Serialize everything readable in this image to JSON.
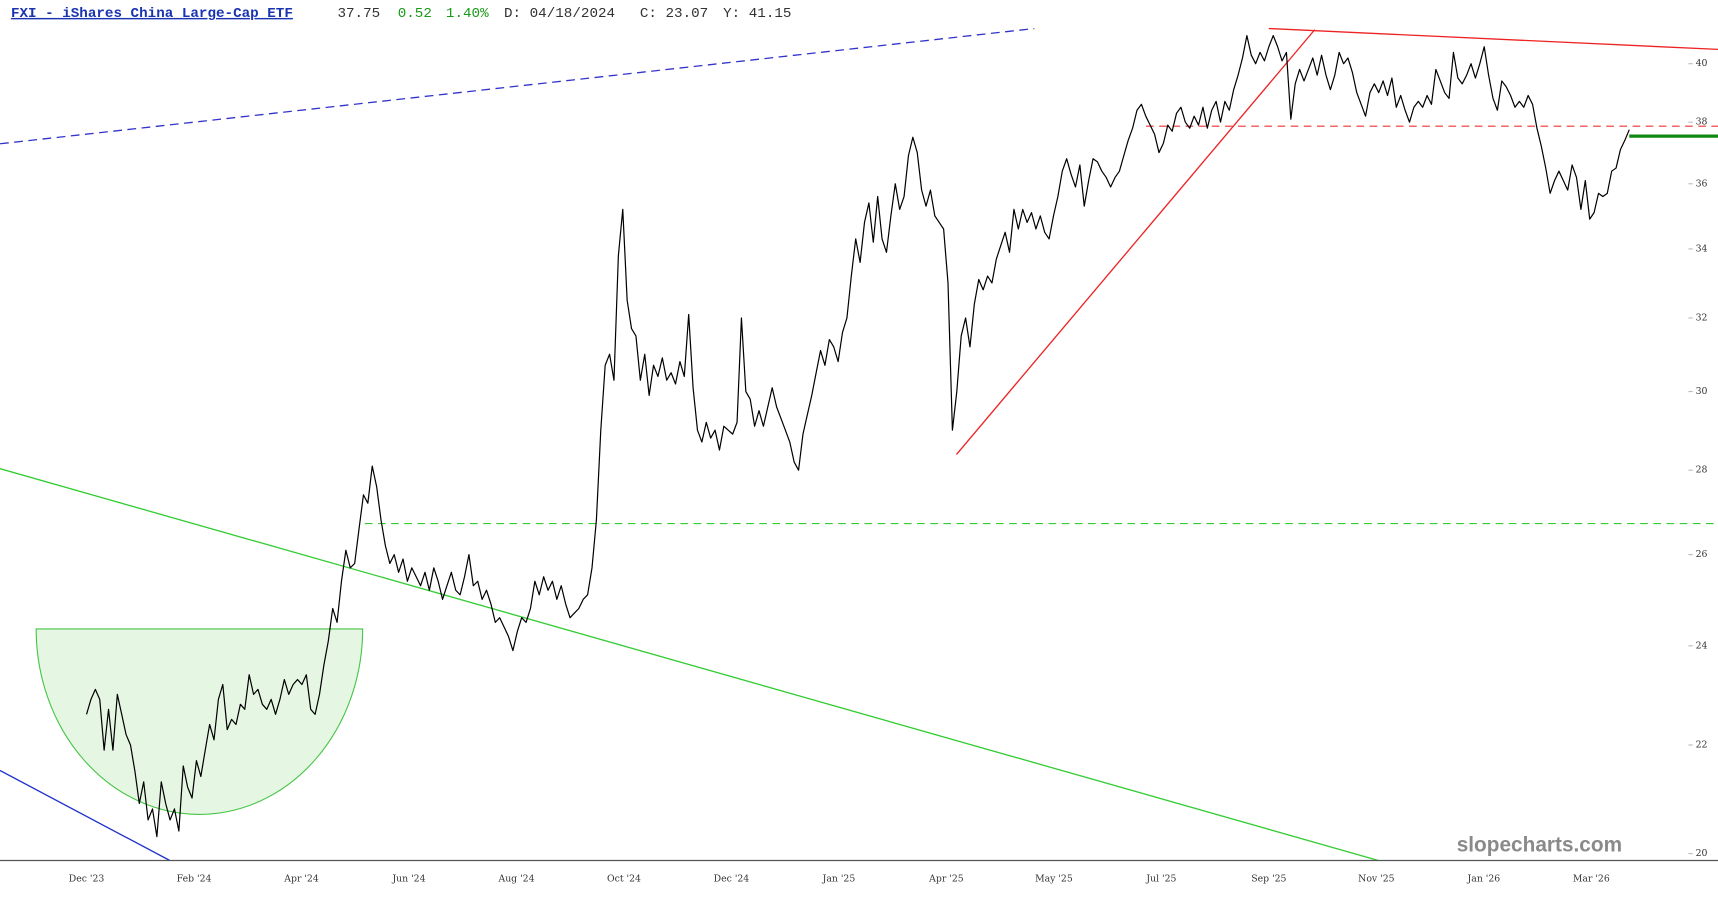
{
  "chart_data": {
    "type": "line",
    "title": "FXI - iShares China Large-Cap ETF",
    "header_stats": [
      {
        "text": "37.75",
        "color": "#333333"
      },
      {
        "text": "0.52",
        "color": "#1a9a1a"
      },
      {
        "text": "1.40%",
        "color": "#1a9a1a"
      },
      {
        "text": "D: 04/18/2024",
        "color": "#333333"
      },
      {
        "text": "C: 23.07",
        "color": "#333333"
      },
      {
        "text": "Y: 41.15",
        "color": "#333333"
      }
    ],
    "watermark": "slopecharts.com",
    "log_scale": true,
    "grid": false,
    "ylim": [
      19.88,
      42.3
    ],
    "yticks": [
      20,
      22,
      24,
      26,
      28,
      30,
      32,
      34,
      36,
      38,
      40
    ],
    "xtick_labels": [
      "Dec '23",
      "Feb '24",
      "Apr '24",
      "Jun '24",
      "Aug '24",
      "Oct '24",
      "Dec '24",
      "Jan '25",
      "Apr '25",
      "May '25",
      "Jul '25",
      "Sep '25",
      "Nov '25",
      "Jan '26",
      "Mar '26"
    ],
    "series": [
      {
        "color": "#000000",
        "values": [
          22.6,
          22.9,
          23.1,
          22.9,
          21.9,
          22.7,
          21.9,
          23.0,
          22.6,
          22.2,
          22.0,
          21.5,
          20.9,
          21.3,
          20.6,
          20.8,
          20.3,
          21.3,
          20.9,
          20.6,
          20.8,
          20.4,
          21.6,
          21.2,
          21.0,
          21.7,
          21.4,
          21.9,
          22.4,
          22.1,
          22.9,
          23.2,
          22.3,
          22.5,
          22.4,
          22.8,
          22.7,
          23.4,
          23.0,
          23.1,
          22.8,
          22.7,
          22.9,
          22.6,
          22.9,
          23.3,
          23.0,
          23.2,
          23.3,
          23.2,
          23.4,
          22.7,
          22.6,
          23.0,
          23.6,
          24.1,
          24.8,
          24.5,
          25.4,
          26.1,
          25.7,
          25.8,
          26.6,
          27.4,
          27.2,
          28.1,
          27.6,
          26.8,
          26.2,
          25.8,
          26.0,
          25.6,
          25.9,
          25.4,
          25.7,
          25.5,
          25.3,
          25.6,
          25.2,
          25.7,
          25.4,
          25.0,
          25.3,
          25.6,
          25.2,
          25.1,
          25.5,
          26.0,
          25.3,
          25.4,
          25.0,
          25.2,
          24.9,
          24.5,
          24.6,
          24.4,
          24.2,
          23.9,
          24.3,
          24.6,
          24.5,
          24.8,
          25.4,
          25.1,
          25.5,
          25.2,
          25.4,
          25.0,
          25.3,
          24.9,
          24.6,
          24.7,
          24.8,
          25.0,
          25.1,
          25.7,
          26.8,
          29.0,
          30.7,
          31.0,
          30.3,
          33.8,
          35.2,
          32.5,
          31.7,
          31.5,
          30.3,
          31.0,
          29.9,
          30.7,
          30.4,
          30.9,
          30.3,
          30.5,
          30.2,
          30.8,
          30.4,
          32.1,
          30.1,
          29.0,
          28.7,
          29.2,
          28.8,
          29.0,
          28.5,
          29.1,
          29.0,
          28.9,
          29.2,
          32.0,
          30.0,
          29.8,
          29.1,
          29.5,
          29.1,
          29.6,
          30.1,
          29.6,
          29.3,
          29.0,
          28.7,
          28.2,
          28.0,
          28.9,
          29.4,
          29.9,
          30.5,
          31.1,
          30.7,
          31.4,
          31.2,
          30.8,
          31.6,
          32.0,
          33.2,
          34.3,
          33.6,
          34.8,
          35.4,
          34.2,
          35.6,
          34.3,
          33.9,
          35.0,
          36.0,
          35.2,
          35.6,
          36.9,
          37.5,
          37.0,
          35.8,
          35.3,
          35.8,
          35.0,
          34.8,
          34.6,
          33.0,
          29.0,
          30.0,
          31.5,
          32.0,
          31.2,
          32.4,
          33.1,
          32.8,
          33.2,
          33.0,
          33.7,
          34.1,
          34.5,
          33.9,
          35.2,
          34.6,
          35.2,
          34.8,
          35.1,
          34.6,
          35.0,
          34.5,
          34.3,
          35.0,
          35.6,
          36.4,
          36.8,
          36.3,
          35.9,
          36.6,
          35.3,
          36.1,
          36.8,
          36.7,
          36.4,
          36.2,
          35.9,
          36.2,
          36.4,
          36.9,
          37.4,
          37.8,
          38.4,
          38.6,
          38.2,
          37.9,
          37.6,
          37.0,
          37.3,
          37.9,
          37.7,
          38.3,
          38.5,
          38.0,
          37.8,
          38.2,
          37.9,
          38.5,
          37.8,
          38.4,
          38.7,
          38.0,
          38.7,
          38.4,
          39.1,
          39.6,
          40.2,
          41.0,
          40.3,
          40.0,
          40.4,
          40.1,
          40.6,
          41.0,
          40.6,
          40.1,
          40.4,
          38.1,
          39.3,
          39.8,
          39.4,
          39.8,
          40.2,
          39.6,
          40.3,
          39.6,
          39.1,
          39.6,
          40.4,
          40.0,
          40.2,
          39.7,
          39.0,
          38.6,
          38.2,
          39.0,
          39.3,
          39.0,
          39.4,
          38.9,
          39.5,
          38.5,
          38.9,
          38.4,
          38.0,
          38.5,
          38.7,
          38.5,
          38.9,
          38.6,
          39.8,
          39.4,
          39.0,
          38.8,
          40.4,
          39.5,
          39.3,
          39.6,
          40.0,
          39.5,
          40.0,
          40.6,
          39.6,
          38.8,
          38.4,
          39.4,
          39.2,
          38.9,
          38.5,
          38.7,
          38.5,
          38.9,
          38.6,
          37.8,
          37.2,
          36.5,
          35.7,
          36.1,
          36.4,
          36.1,
          35.8,
          36.6,
          36.2,
          35.2,
          36.1,
          34.9,
          35.1,
          35.7,
          35.6,
          35.7,
          36.4,
          36.5,
          37.1,
          37.4,
          37.75
        ]
      }
    ]
  }
}
